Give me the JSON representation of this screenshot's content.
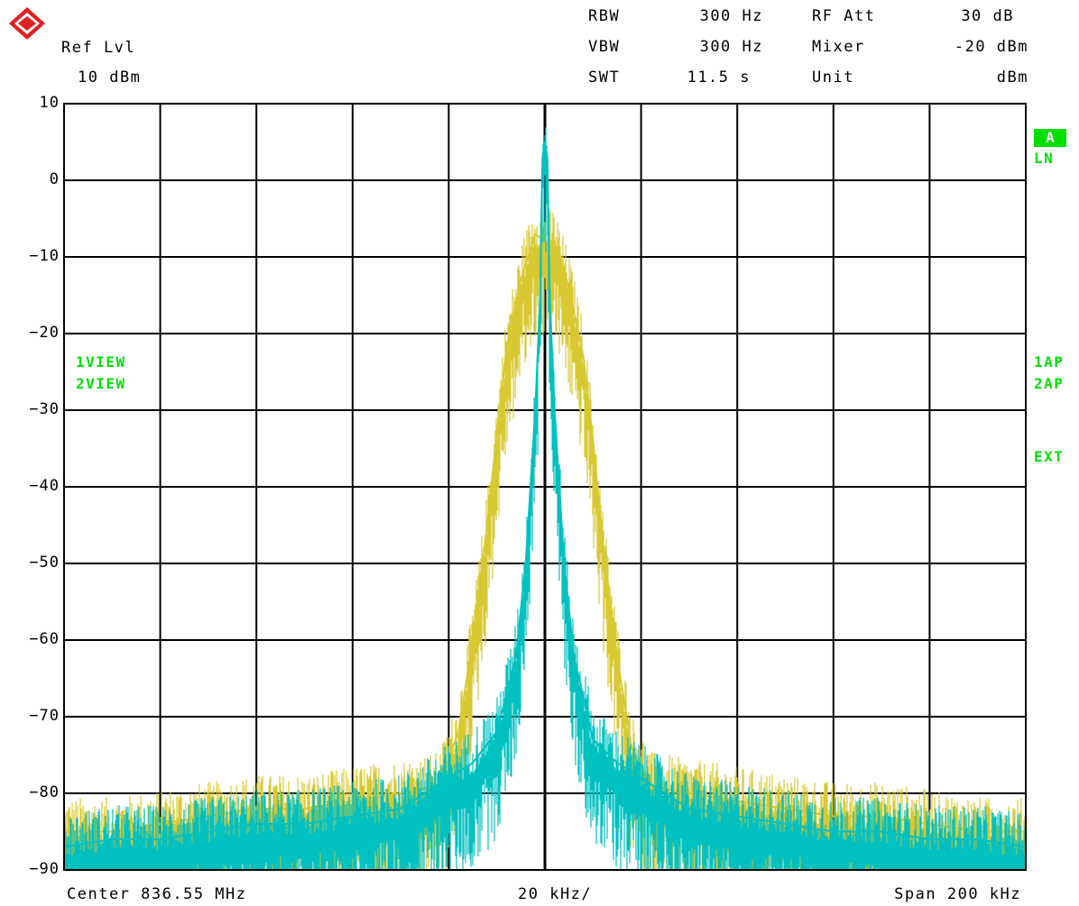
{
  "header": {
    "ref_lvl_label": "Ref Lvl",
    "ref_lvl_value": "10 dBm",
    "rbw_label": "RBW",
    "rbw_value": "300 Hz",
    "vbw_label": "VBW",
    "vbw_value": "300 Hz",
    "swt_label": "SWT",
    "swt_value": "11.5 s",
    "rfatt_label": "RF Att",
    "rfatt_value": "30 dB",
    "mixer_label": "Mixer",
    "mixer_value": "-20 dBm",
    "unit_label": "Unit",
    "unit_value": "dBm"
  },
  "side_left": {
    "view1": "1VIEW",
    "view2": "2VIEW"
  },
  "side_right": {
    "badge": "A",
    "ln": "LN",
    "ap1": "1AP",
    "ap2": "2AP",
    "ext": "EXT"
  },
  "footer": {
    "center": "Center 836.55 MHz",
    "div": "20 kHz/",
    "span": "Span 200 kHz"
  },
  "colors": {
    "trace1": "#d8c832",
    "trace2": "#00c0c0",
    "accent": "#00e000",
    "grid": "#000000"
  },
  "chart_data": {
    "type": "line",
    "xlabel": "",
    "ylabel": "",
    "x_unit": "kHz offset from center",
    "xlim": [
      -100,
      100
    ],
    "ylim": [
      -90,
      10
    ],
    "yticks": [
      10,
      0,
      -10,
      -20,
      -30,
      -40,
      -50,
      -60,
      -70,
      -80,
      -90
    ],
    "grid": true,
    "series": [
      {
        "color": "#d8c832",
        "x": [
          -100,
          -90,
          -80,
          -70,
          -60,
          -50,
          -40,
          -30,
          -22,
          -18,
          -15,
          -12,
          -10,
          -8,
          -5,
          -2,
          0,
          2,
          5,
          8,
          10,
          12,
          15,
          18,
          22,
          30,
          40,
          50,
          60,
          70,
          80,
          90,
          100
        ],
        "y": [
          -85,
          -85,
          -84,
          -83,
          -82,
          -82,
          -81,
          -80,
          -79,
          -72,
          -60,
          -45,
          -33,
          -22,
          -13,
          -7,
          -8,
          -8,
          -14,
          -23,
          -34,
          -47,
          -62,
          -74,
          -79,
          -80,
          -81,
          -82,
          -83,
          -83,
          -84,
          -85,
          -85
        ]
      },
      {
        "color": "#00c0c0",
        "x": [
          -100,
          -90,
          -80,
          -70,
          -60,
          -50,
          -40,
          -30,
          -20,
          -15,
          -10,
          -6,
          -4,
          -2,
          -1,
          -0.5,
          0,
          0.5,
          1,
          2,
          4,
          6,
          10,
          15,
          20,
          30,
          40,
          50,
          60,
          70,
          80,
          90,
          100
        ],
        "y": [
          -87,
          -86,
          -86,
          -85,
          -84,
          -84,
          -83,
          -82,
          -78,
          -76,
          -72,
          -62,
          -50,
          -30,
          -15,
          3,
          5,
          3,
          -15,
          -30,
          -50,
          -62,
          -73,
          -76,
          -78,
          -82,
          -83,
          -84,
          -85,
          -85,
          -86,
          -86,
          -87
        ]
      }
    ]
  }
}
